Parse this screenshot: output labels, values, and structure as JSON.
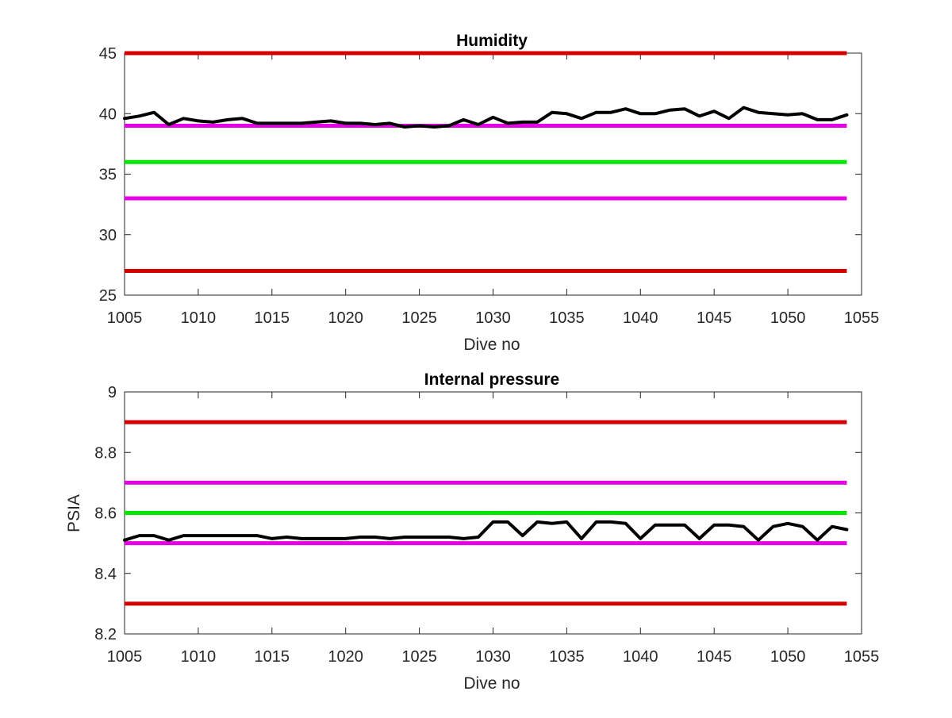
{
  "chart_data": [
    {
      "type": "line",
      "title": "Humidity",
      "xlabel": "Dive no",
      "ylabel": "",
      "xlim": [
        1005,
        1055
      ],
      "ylim": [
        25,
        45
      ],
      "xticks": [
        1005,
        1010,
        1015,
        1020,
        1025,
        1030,
        1035,
        1040,
        1045,
        1050,
        1055
      ],
      "yticks": [
        25,
        30,
        35,
        40,
        45
      ],
      "xtick_labels": [
        "1005",
        "1010",
        "1015",
        "1020",
        "1025",
        "1030",
        "1035",
        "1040",
        "1045",
        "1050",
        "1055"
      ],
      "ytick_labels": [
        "25",
        "30",
        "35",
        "40",
        "45"
      ],
      "grid": false,
      "x_span": [
        1005,
        1054
      ],
      "thresholds": [
        {
          "y": 45,
          "color": "#d40000"
        },
        {
          "y": 39,
          "color": "#e600e6"
        },
        {
          "y": 36,
          "color": "#00e600"
        },
        {
          "y": 33,
          "color": "#e600e6"
        },
        {
          "y": 27,
          "color": "#d40000"
        }
      ],
      "series": [
        {
          "color": "#000000",
          "x": [
            1005,
            1006,
            1007,
            1008,
            1009,
            1010,
            1011,
            1012,
            1013,
            1014,
            1015,
            1016,
            1017,
            1018,
            1019,
            1020,
            1021,
            1022,
            1023,
            1024,
            1025,
            1026,
            1027,
            1028,
            1029,
            1030,
            1031,
            1032,
            1033,
            1034,
            1035,
            1036,
            1037,
            1038,
            1039,
            1040,
            1041,
            1042,
            1043,
            1044,
            1045,
            1046,
            1047,
            1048,
            1049,
            1050,
            1051,
            1052,
            1053,
            1054
          ],
          "values": [
            39.6,
            39.8,
            40.1,
            39.1,
            39.6,
            39.4,
            39.3,
            39.5,
            39.6,
            39.2,
            39.2,
            39.2,
            39.2,
            39.3,
            39.4,
            39.2,
            39.2,
            39.1,
            39.2,
            38.9,
            39.0,
            38.9,
            39.0,
            39.5,
            39.1,
            39.7,
            39.2,
            39.3,
            39.3,
            40.1,
            40.0,
            39.6,
            40.1,
            40.1,
            40.4,
            40.0,
            40.0,
            40.3,
            40.4,
            39.8,
            40.2,
            39.6,
            40.5,
            40.1,
            40.0,
            39.9,
            40.0,
            39.5,
            39.5,
            39.9
          ]
        }
      ]
    },
    {
      "type": "line",
      "title": "Internal pressure",
      "xlabel": "Dive no",
      "ylabel": "PSIA",
      "xlim": [
        1005,
        1055
      ],
      "ylim": [
        8.2,
        9
      ],
      "xticks": [
        1005,
        1010,
        1015,
        1020,
        1025,
        1030,
        1035,
        1040,
        1045,
        1050,
        1055
      ],
      "yticks": [
        8.2,
        8.4,
        8.6,
        8.8,
        9
      ],
      "xtick_labels": [
        "1005",
        "1010",
        "1015",
        "1020",
        "1025",
        "1030",
        "1035",
        "1040",
        "1045",
        "1050",
        "1055"
      ],
      "ytick_labels": [
        "8.2",
        "8.4",
        "8.6",
        "8.8",
        "9"
      ],
      "grid": false,
      "x_span": [
        1005,
        1054
      ],
      "thresholds": [
        {
          "y": 8.9,
          "color": "#d40000"
        },
        {
          "y": 8.7,
          "color": "#e600e6"
        },
        {
          "y": 8.6,
          "color": "#00e600"
        },
        {
          "y": 8.5,
          "color": "#e600e6"
        },
        {
          "y": 8.3,
          "color": "#d40000"
        }
      ],
      "series": [
        {
          "color": "#000000",
          "x": [
            1005,
            1006,
            1007,
            1008,
            1009,
            1010,
            1011,
            1012,
            1013,
            1014,
            1015,
            1016,
            1017,
            1018,
            1019,
            1020,
            1021,
            1022,
            1023,
            1024,
            1025,
            1026,
            1027,
            1028,
            1029,
            1030,
            1031,
            1032,
            1033,
            1034,
            1035,
            1036,
            1037,
            1038,
            1039,
            1040,
            1041,
            1042,
            1043,
            1044,
            1045,
            1046,
            1047,
            1048,
            1049,
            1050,
            1051,
            1052,
            1053,
            1054
          ],
          "values": [
            8.51,
            8.525,
            8.525,
            8.51,
            8.525,
            8.525,
            8.525,
            8.525,
            8.525,
            8.525,
            8.515,
            8.52,
            8.515,
            8.515,
            8.515,
            8.515,
            8.52,
            8.52,
            8.515,
            8.52,
            8.52,
            8.52,
            8.52,
            8.515,
            8.52,
            8.57,
            8.57,
            8.525,
            8.57,
            8.565,
            8.57,
            8.515,
            8.57,
            8.57,
            8.565,
            8.515,
            8.56,
            8.56,
            8.56,
            8.515,
            8.56,
            8.56,
            8.555,
            8.51,
            8.555,
            8.565,
            8.555,
            8.51,
            8.555,
            8.545
          ]
        }
      ]
    }
  ]
}
